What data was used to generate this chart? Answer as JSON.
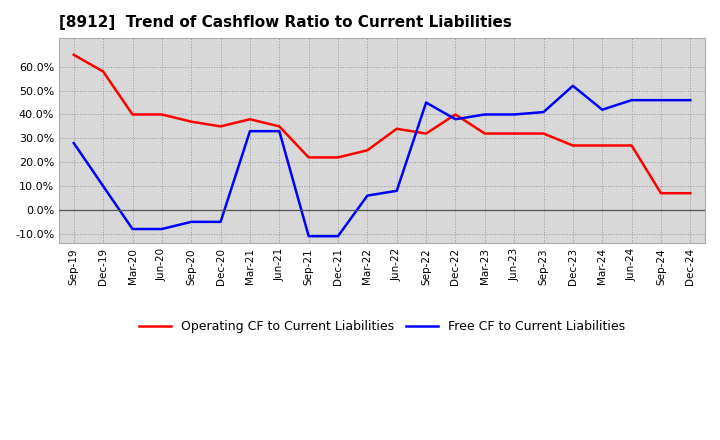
{
  "title": "[8912]  Trend of Cashflow Ratio to Current Liabilities",
  "x_labels": [
    "Sep-19",
    "Dec-19",
    "Mar-20",
    "Jun-20",
    "Sep-20",
    "Dec-20",
    "Mar-21",
    "Jun-21",
    "Sep-21",
    "Dec-21",
    "Mar-22",
    "Jun-22",
    "Sep-22",
    "Dec-22",
    "Mar-23",
    "Jun-23",
    "Sep-23",
    "Dec-23",
    "Mar-24",
    "Jun-24",
    "Sep-24",
    "Dec-24"
  ],
  "operating_cf": [
    65,
    58,
    40,
    40,
    37,
    35,
    38,
    35,
    22,
    22,
    25,
    34,
    32,
    40,
    32,
    32,
    32,
    27,
    27,
    27,
    7,
    7
  ],
  "free_cf": [
    28,
    10,
    -8,
    -8,
    -5,
    -5,
    33,
    33,
    -11,
    -11,
    6,
    8,
    45,
    38,
    40,
    40,
    41,
    52,
    42,
    46,
    46,
    46
  ],
  "operating_color": "#ff0000",
  "free_color": "#0000ff",
  "ylim_min": -14,
  "ylim_max": 72,
  "yticks": [
    -10,
    0,
    10,
    20,
    30,
    40,
    50,
    60
  ],
  "bg_color": "#ffffff",
  "plot_bg_color": "#d8d8d8",
  "legend_labels": [
    "Operating CF to Current Liabilities",
    "Free CF to Current Liabilities"
  ]
}
